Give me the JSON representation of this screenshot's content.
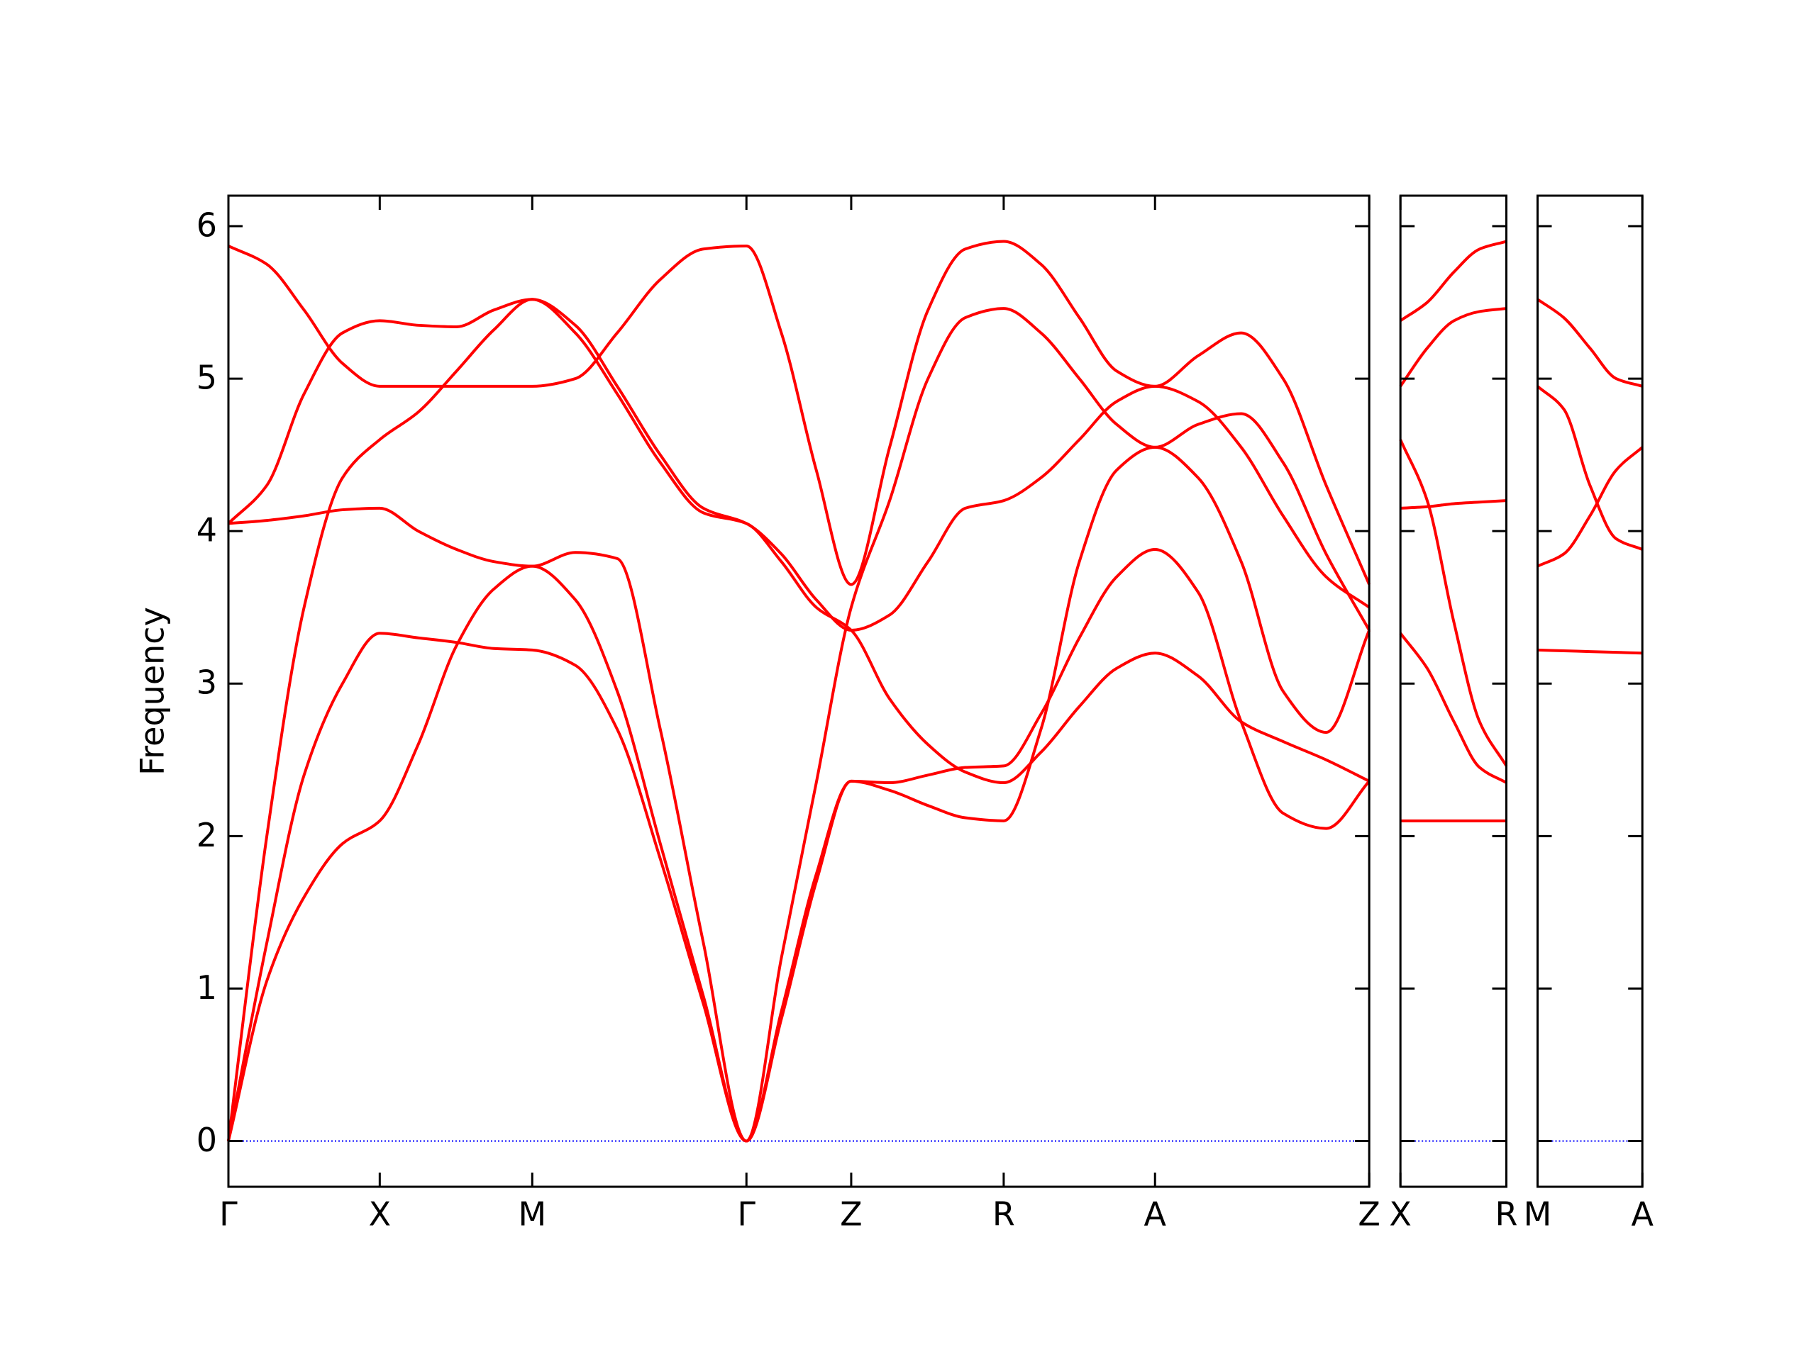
{
  "chart_data": [
    {
      "type": "line",
      "ylabel": "Frequency",
      "xlim": [
        0,
        9.8
      ],
      "ylim": [
        -0.3,
        6.2
      ],
      "yticks": [
        0,
        1,
        2,
        3,
        4,
        5,
        6
      ],
      "xticks": [
        {
          "value": 0,
          "label": "Γ"
        },
        {
          "value": 1.3,
          "label": "X"
        },
        {
          "value": 2.61,
          "label": "M"
        },
        {
          "value": 4.45,
          "label": "Γ"
        },
        {
          "value": 5.35,
          "label": "Z"
        },
        {
          "value": 6.66,
          "label": "R"
        },
        {
          "value": 7.96,
          "label": "A"
        },
        {
          "value": 9.8,
          "label": "Z"
        }
      ],
      "hline": {
        "value": 0,
        "color": "#0000ff"
      },
      "x": [
        0,
        0.33,
        0.65,
        0.98,
        1.3,
        1.63,
        1.96,
        2.28,
        2.61,
        2.98,
        3.34,
        3.71,
        4.08,
        4.45,
        4.75,
        5.05,
        5.35,
        5.68,
        6.01,
        6.33,
        6.66,
        6.98,
        7.31,
        7.63,
        7.96,
        8.33,
        8.7,
        9.06,
        9.43,
        9.8
      ],
      "series": [
        {
          "color": "#ff0000",
          "values": [
            0,
            1.05,
            1.6,
            1.95,
            2.1,
            2.6,
            3.25,
            3.62,
            3.77,
            3.55,
            2.95,
            1.95,
            0.95,
            0,
            0.85,
            1.75,
            2.36,
            2.3,
            2.2,
            2.12,
            2.1,
            2.7,
            3.8,
            4.4,
            4.55,
            4.35,
            3.8,
            2.95,
            2.68,
            3.35
          ]
        },
        {
          "color": "#ff0000",
          "values": [
            0,
            1.3,
            2.4,
            3.0,
            3.33,
            3.3,
            3.27,
            3.23,
            3.22,
            3.12,
            2.7,
            1.85,
            0.9,
            0,
            0.8,
            1.7,
            2.36,
            2.35,
            2.4,
            2.45,
            2.46,
            2.8,
            3.3,
            3.7,
            3.88,
            3.6,
            2.75,
            2.15,
            2.05,
            2.36
          ]
        },
        {
          "color": "#ff0000",
          "values": [
            0,
            2.0,
            3.5,
            4.35,
            4.6,
            4.78,
            5.05,
            5.32,
            5.52,
            5.35,
            4.95,
            4.5,
            4.15,
            4.05,
            3.85,
            3.55,
            3.35,
            3.45,
            3.8,
            4.15,
            4.2,
            4.35,
            4.6,
            4.85,
            4.95,
            4.85,
            4.55,
            4.1,
            3.7,
            3.5
          ]
        },
        {
          "color": "#ff0000",
          "values": [
            4.05,
            4.07,
            4.1,
            4.14,
            4.15,
            4.0,
            3.88,
            3.8,
            3.77,
            3.86,
            3.82,
            2.7,
            1.3,
            0,
            1.2,
            2.35,
            3.5,
            4.2,
            5.0,
            5.4,
            5.46,
            5.3,
            5.0,
            4.7,
            4.55,
            4.7,
            4.77,
            4.45,
            3.85,
            3.35
          ]
        },
        {
          "color": "#ff0000",
          "values": [
            4.05,
            4.3,
            4.9,
            5.3,
            5.38,
            5.35,
            5.34,
            5.45,
            5.52,
            5.3,
            4.9,
            4.45,
            4.12,
            4.05,
            3.8,
            3.5,
            3.35,
            2.9,
            2.6,
            2.42,
            2.35,
            2.55,
            2.85,
            3.1,
            3.2,
            3.05,
            2.75,
            2.62,
            2.5,
            2.36
          ]
        },
        {
          "color": "#ff0000",
          "values": [
            5.87,
            5.75,
            5.45,
            5.1,
            4.95,
            4.95,
            4.95,
            4.95,
            4.95,
            5.0,
            5.3,
            5.65,
            5.85,
            5.87,
            5.3,
            4.4,
            3.65,
            4.55,
            5.45,
            5.85,
            5.9,
            5.75,
            5.4,
            5.05,
            4.95,
            5.15,
            5.3,
            5.0,
            4.3,
            3.65
          ]
        }
      ]
    },
    {
      "type": "line",
      "sharey": true,
      "xlim": [
        0,
        0.91
      ],
      "xticks": [
        {
          "value": 0,
          "label": "X"
        },
        {
          "value": 0.91,
          "label": "R"
        }
      ],
      "hline": {
        "value": 0,
        "color": "#0000ff"
      },
      "x": [
        0,
        0.23,
        0.46,
        0.68,
        0.91
      ],
      "series": [
        {
          "color": "#ff0000",
          "values": [
            2.1,
            2.1,
            2.1,
            2.1,
            2.1
          ]
        },
        {
          "color": "#ff0000",
          "values": [
            3.33,
            3.1,
            2.75,
            2.45,
            2.35
          ]
        },
        {
          "color": "#ff0000",
          "values": [
            4.6,
            4.2,
            3.4,
            2.75,
            2.46
          ]
        },
        {
          "color": "#ff0000",
          "values": [
            4.15,
            4.16,
            4.18,
            4.19,
            4.2
          ]
        },
        {
          "color": "#ff0000",
          "values": [
            4.95,
            5.2,
            5.38,
            5.44,
            5.46
          ]
        },
        {
          "color": "#ff0000",
          "values": [
            5.38,
            5.5,
            5.7,
            5.85,
            5.9
          ]
        }
      ]
    },
    {
      "type": "line",
      "sharey": true,
      "xlim": [
        0,
        0.9
      ],
      "xticks": [
        {
          "value": 0,
          "label": "M"
        },
        {
          "value": 0.9,
          "label": "A"
        }
      ],
      "hline": {
        "value": 0,
        "color": "#0000ff"
      },
      "x": [
        0,
        0.225,
        0.45,
        0.675,
        0.9
      ],
      "series": [
        {
          "color": "#ff0000",
          "values": [
            3.22,
            3.215,
            3.21,
            3.205,
            3.2
          ]
        },
        {
          "color": "#ff0000",
          "values": [
            3.77,
            3.85,
            4.1,
            4.4,
            4.55
          ]
        },
        {
          "color": "#ff0000",
          "values": [
            4.95,
            4.8,
            4.3,
            3.95,
            3.88
          ]
        },
        {
          "color": "#ff0000",
          "values": [
            5.52,
            5.4,
            5.2,
            5.0,
            4.95
          ]
        }
      ]
    }
  ]
}
